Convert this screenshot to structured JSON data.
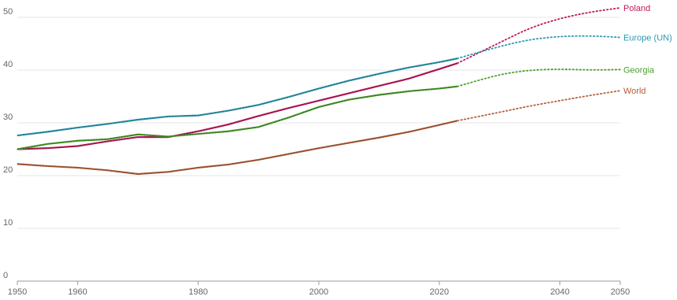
{
  "chart_data": {
    "type": "line",
    "title": "",
    "xlabel": "",
    "ylabel": "",
    "xlim": [
      1950,
      2050
    ],
    "ylim": [
      0,
      50
    ],
    "grid": true,
    "y_ticks": [
      0,
      10,
      20,
      30,
      40,
      50
    ],
    "x_ticks": [
      1950,
      1960,
      1980,
      2000,
      2020,
      2040,
      2050
    ],
    "historical_end_year": 2023,
    "series": [
      {
        "name": "Poland",
        "color": "#c2185b",
        "x": [
          1950,
          1955,
          1960,
          1965,
          1970,
          1975,
          1980,
          1985,
          1990,
          1995,
          2000,
          2005,
          2010,
          2015,
          2020,
          2023
        ],
        "y": [
          25.0,
          25.2,
          25.6,
          26.5,
          27.3,
          27.3,
          28.4,
          29.7,
          31.3,
          32.8,
          34.2,
          35.6,
          37.0,
          38.4,
          40.2,
          41.3
        ],
        "projection_x": [
          2023,
          2030,
          2035,
          2040,
          2045,
          2050
        ],
        "projection_y": [
          41.3,
          45.2,
          48.0,
          49.8,
          51.0,
          51.8
        ]
      },
      {
        "name": "Europe (UN)",
        "color": "#2b9bb5",
        "x": [
          1950,
          1955,
          1960,
          1965,
          1970,
          1975,
          1980,
          1985,
          1990,
          1995,
          2000,
          2005,
          2010,
          2015,
          2020,
          2023
        ],
        "y": [
          27.6,
          28.3,
          29.1,
          29.8,
          30.6,
          31.2,
          31.4,
          32.3,
          33.4,
          34.9,
          36.5,
          38.0,
          39.3,
          40.5,
          41.5,
          42.2
        ],
        "projection_x": [
          2023,
          2030,
          2035,
          2040,
          2045,
          2050
        ],
        "projection_y": [
          42.2,
          44.5,
          45.8,
          46.4,
          46.5,
          46.2
        ]
      },
      {
        "name": "Georgia",
        "color": "#4aa02c",
        "x": [
          1950,
          1955,
          1960,
          1965,
          1970,
          1975,
          1980,
          1985,
          1990,
          1995,
          2000,
          2005,
          2010,
          2015,
          2020,
          2023
        ],
        "y": [
          25.0,
          26.0,
          26.6,
          26.9,
          27.8,
          27.4,
          27.9,
          28.4,
          29.2,
          31.0,
          33.0,
          34.4,
          35.3,
          36.0,
          36.5,
          36.9
        ],
        "projection_x": [
          2023,
          2030,
          2035,
          2040,
          2045,
          2050
        ],
        "projection_y": [
          36.9,
          39.2,
          40.0,
          40.2,
          40.0,
          40.1
        ]
      },
      {
        "name": "World",
        "color": "#b5603a",
        "x": [
          1950,
          1955,
          1960,
          1965,
          1970,
          1975,
          1980,
          1985,
          1990,
          1995,
          2000,
          2005,
          2010,
          2015,
          2020,
          2023
        ],
        "y": [
          22.2,
          21.8,
          21.5,
          21.0,
          20.3,
          20.7,
          21.5,
          22.1,
          23.0,
          24.1,
          25.2,
          26.2,
          27.2,
          28.3,
          29.6,
          30.4
        ],
        "projection_x": [
          2023,
          2030,
          2035,
          2040,
          2045,
          2050
        ],
        "projection_y": [
          30.4,
          32.0,
          33.2,
          34.2,
          35.2,
          36.1
        ]
      }
    ]
  }
}
